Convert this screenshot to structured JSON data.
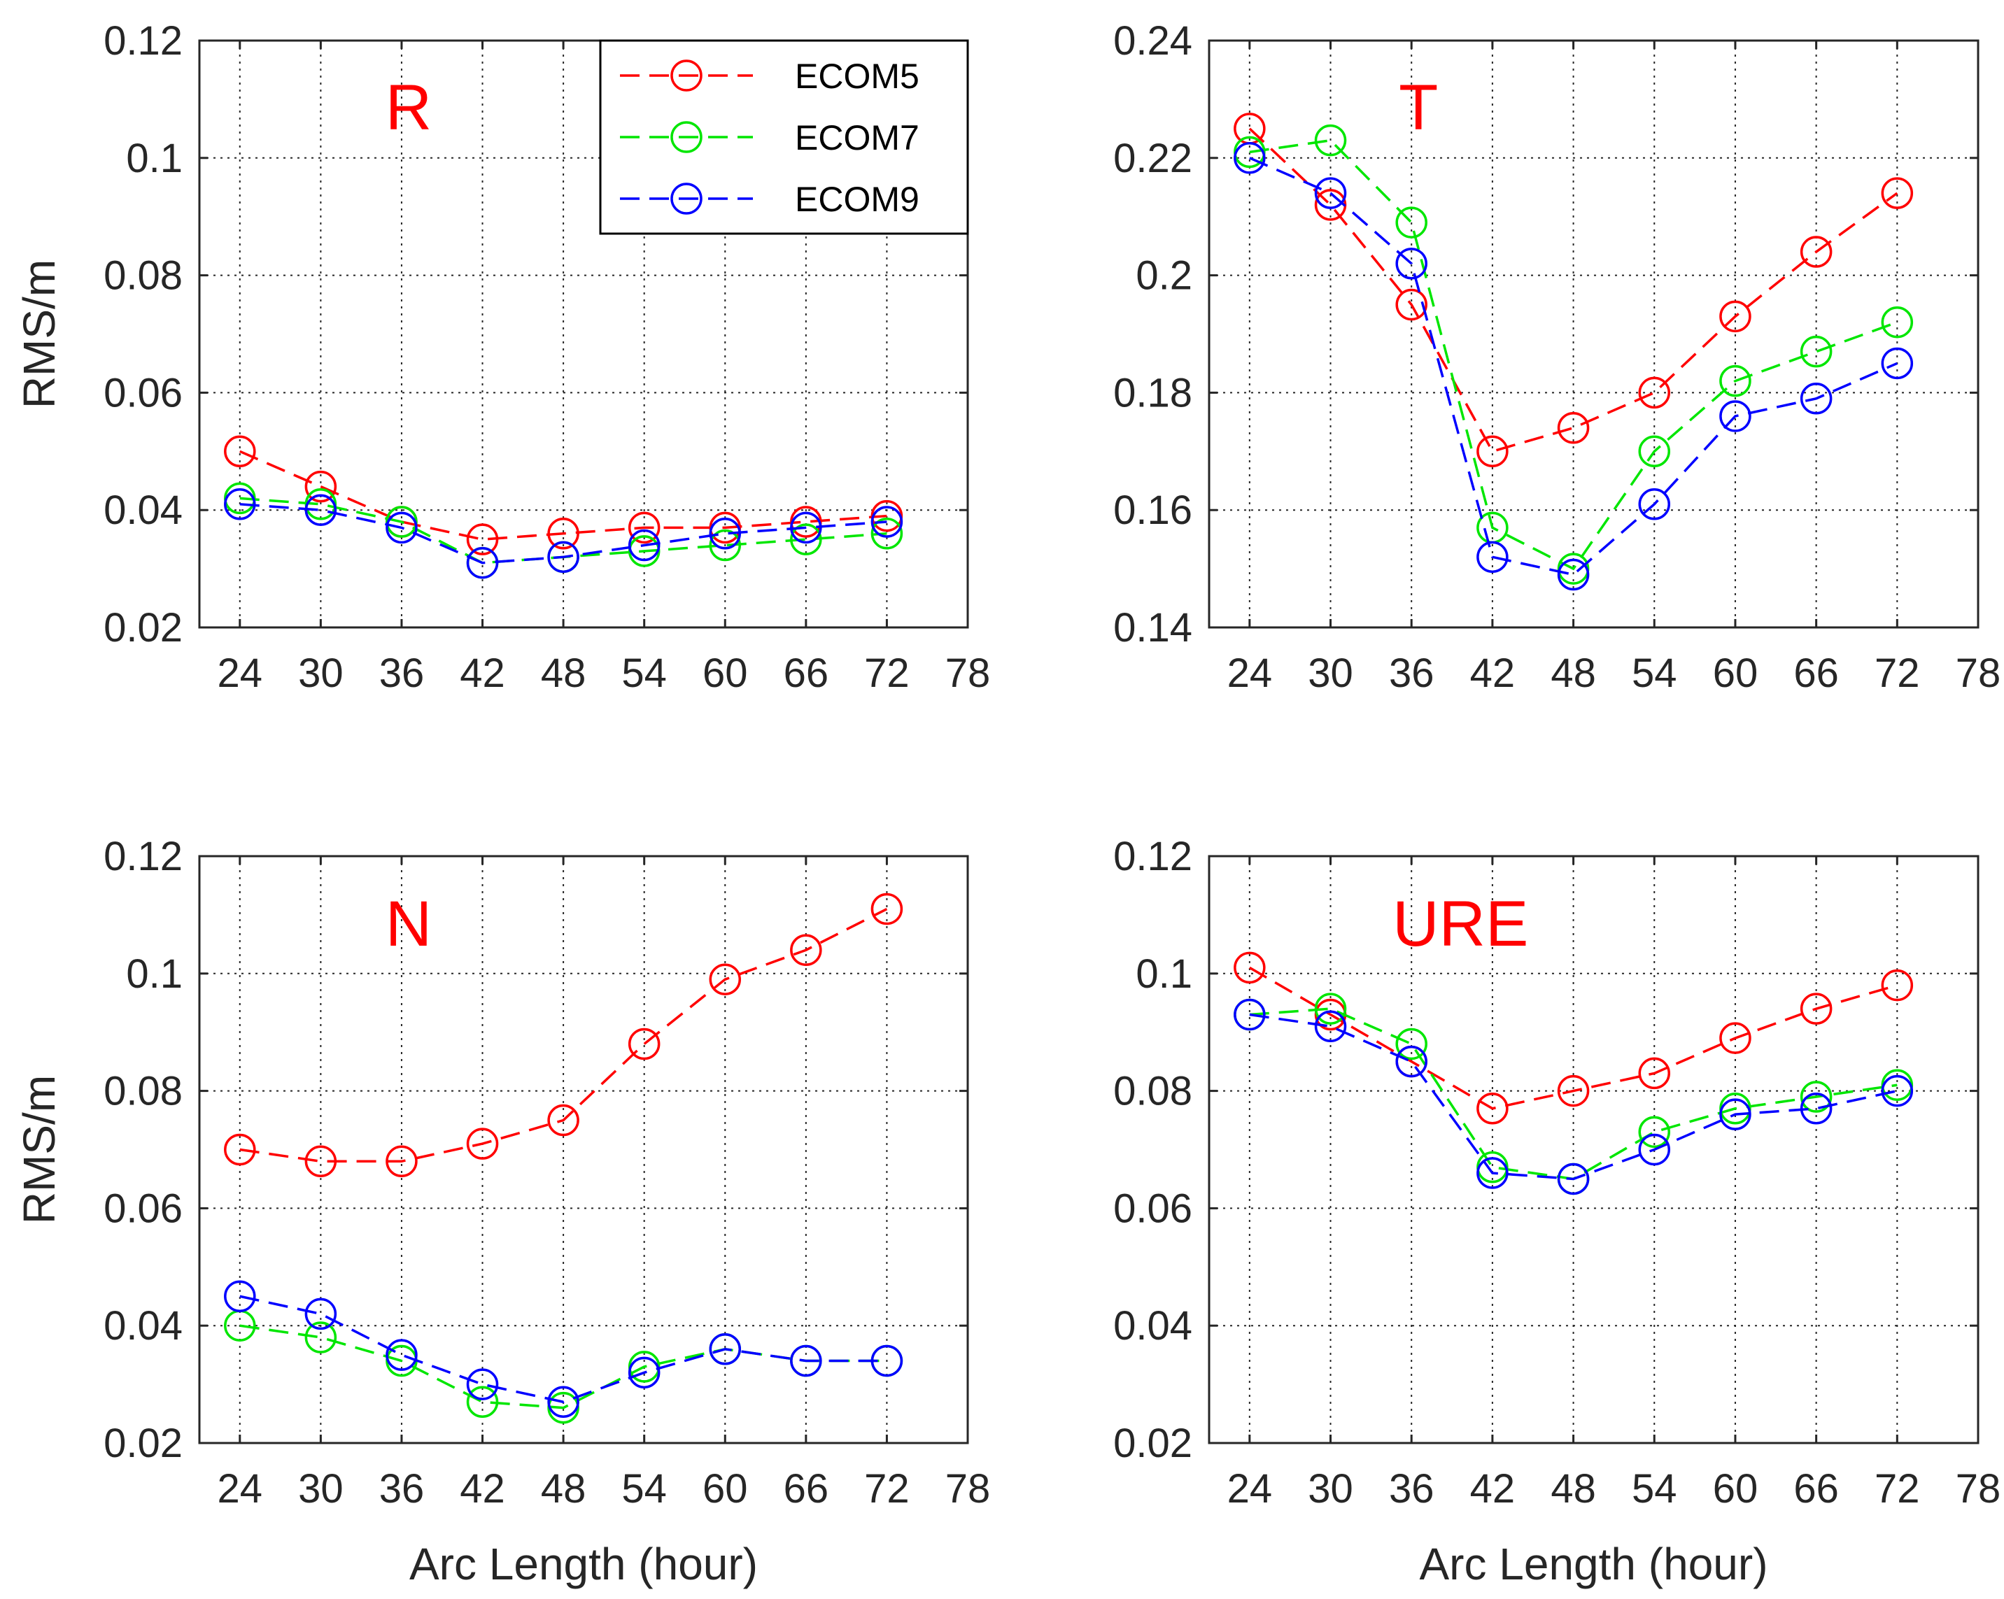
{
  "colors": {
    "ECOM5": "#ff0000",
    "ECOM7": "#00e600",
    "ECOM9": "#0000ff",
    "panel_title": "#ff0000"
  },
  "legend": {
    "entries": [
      "ECOM5",
      "ECOM7",
      "ECOM9"
    ]
  },
  "chart_data": [
    {
      "type": "line",
      "title": "R",
      "xlabel": "",
      "ylabel": "RMS/m",
      "xlim": [
        21,
        78
      ],
      "xticks": [
        "24",
        "30",
        "36",
        "42",
        "48",
        "54",
        "60",
        "66",
        "72",
        "78"
      ],
      "ylim": [
        0.02,
        0.12
      ],
      "yticks": [
        "0.02",
        "0.04",
        "0.06",
        "0.08",
        "0.1",
        "0.12"
      ],
      "grid": true,
      "legend": "top-right",
      "x": [
        24,
        30,
        36,
        42,
        48,
        54,
        60,
        66,
        72
      ],
      "series": [
        {
          "name": "ECOM5",
          "values": [
            0.05,
            0.044,
            0.038,
            0.035,
            0.036,
            0.037,
            0.037,
            0.038,
            0.039
          ]
        },
        {
          "name": "ECOM7",
          "values": [
            0.042,
            0.041,
            0.038,
            0.031,
            0.032,
            0.033,
            0.034,
            0.035,
            0.036
          ]
        },
        {
          "name": "ECOM9",
          "values": [
            0.041,
            0.04,
            0.037,
            0.031,
            0.032,
            0.034,
            0.036,
            0.037,
            0.038
          ]
        }
      ]
    },
    {
      "type": "line",
      "title": "T",
      "xlabel": "",
      "ylabel": "",
      "xlim": [
        21,
        78
      ],
      "xticks": [
        "24",
        "30",
        "36",
        "42",
        "48",
        "54",
        "60",
        "66",
        "72",
        "78"
      ],
      "ylim": [
        0.14,
        0.24
      ],
      "yticks": [
        "0.14",
        "0.16",
        "0.18",
        "0.2",
        "0.22",
        "0.24"
      ],
      "grid": true,
      "x": [
        24,
        30,
        36,
        42,
        48,
        54,
        60,
        66,
        72
      ],
      "series": [
        {
          "name": "ECOM5",
          "values": [
            0.225,
            0.212,
            0.195,
            0.17,
            0.174,
            0.18,
            0.193,
            0.204,
            0.214
          ]
        },
        {
          "name": "ECOM7",
          "values": [
            0.221,
            0.223,
            0.209,
            0.157,
            0.15,
            0.17,
            0.182,
            0.187,
            0.192
          ]
        },
        {
          "name": "ECOM9",
          "values": [
            0.22,
            0.214,
            0.202,
            0.152,
            0.149,
            0.161,
            0.176,
            0.179,
            0.185
          ]
        }
      ]
    },
    {
      "type": "line",
      "title": "N",
      "xlabel": "Arc Length (hour)",
      "ylabel": "RMS/m",
      "xlim": [
        21,
        78
      ],
      "xticks": [
        "24",
        "30",
        "36",
        "42",
        "48",
        "54",
        "60",
        "66",
        "72",
        "78"
      ],
      "ylim": [
        0.02,
        0.12
      ],
      "yticks": [
        "0.02",
        "0.04",
        "0.06",
        "0.08",
        "0.1",
        "0.12"
      ],
      "grid": true,
      "x": [
        24,
        30,
        36,
        42,
        48,
        54,
        60,
        66,
        72
      ],
      "series": [
        {
          "name": "ECOM5",
          "values": [
            0.07,
            0.068,
            0.068,
            0.071,
            0.075,
            0.088,
            0.099,
            0.104,
            0.111
          ]
        },
        {
          "name": "ECOM7",
          "values": [
            0.04,
            0.038,
            0.034,
            0.027,
            0.026,
            0.033,
            0.036,
            0.034,
            0.034
          ]
        },
        {
          "name": "ECOM9",
          "values": [
            0.045,
            0.042,
            0.035,
            0.03,
            0.027,
            0.032,
            0.036,
            0.034,
            0.034
          ]
        }
      ]
    },
    {
      "type": "line",
      "title": "URE",
      "xlabel": "Arc Length (hour)",
      "ylabel": "",
      "xlim": [
        21,
        78
      ],
      "xticks": [
        "24",
        "30",
        "36",
        "42",
        "48",
        "54",
        "60",
        "66",
        "72",
        "78"
      ],
      "ylim": [
        0.02,
        0.12
      ],
      "yticks": [
        "0.02",
        "0.04",
        "0.06",
        "0.08",
        "0.1",
        "0.12"
      ],
      "grid": true,
      "x": [
        24,
        30,
        36,
        42,
        48,
        54,
        60,
        66,
        72
      ],
      "series": [
        {
          "name": "ECOM5",
          "values": [
            0.101,
            0.093,
            0.085,
            0.077,
            0.08,
            0.083,
            0.089,
            0.094,
            0.098
          ]
        },
        {
          "name": "ECOM7",
          "values": [
            0.093,
            0.094,
            0.088,
            0.067,
            0.065,
            0.073,
            0.077,
            0.079,
            0.081
          ]
        },
        {
          "name": "ECOM9",
          "values": [
            0.093,
            0.091,
            0.085,
            0.066,
            0.065,
            0.07,
            0.076,
            0.077,
            0.08
          ]
        }
      ]
    }
  ]
}
